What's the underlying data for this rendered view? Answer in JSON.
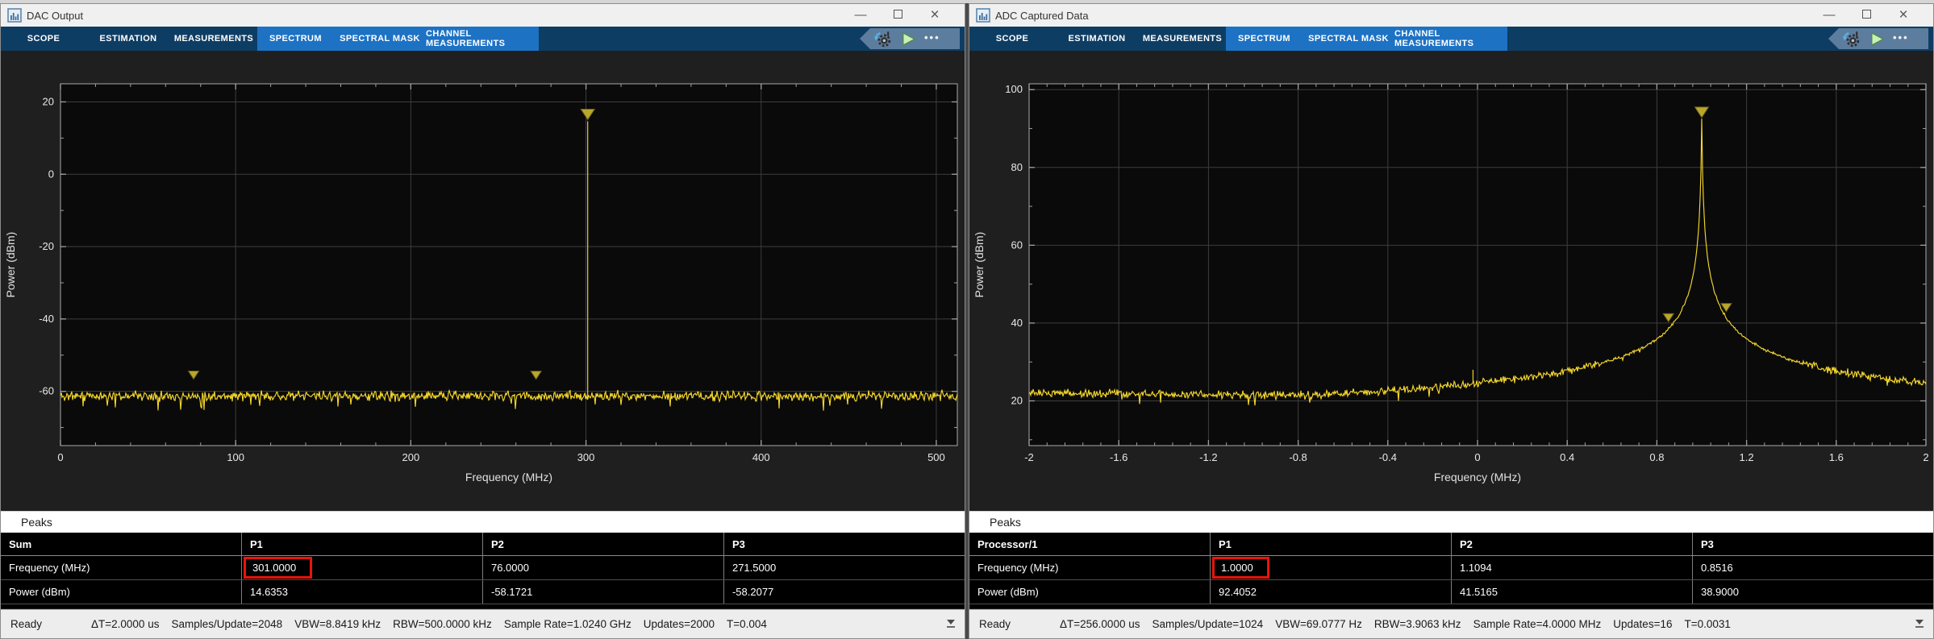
{
  "icons": {
    "minimize": "—",
    "close": "×",
    "more_options": "•••"
  },
  "accent_colors": {
    "toolstrip_dark": "#0e3d64",
    "toolstrip_bright": "#1d72c4",
    "highlight_red": "#e8140c",
    "trace_yellow": "#f4d62c"
  },
  "windows": [
    {
      "title": "DAC Output",
      "tabs": [
        "SCOPE",
        "ESTIMATION",
        "MEASUREMENTS",
        "SPECTRUM",
        "SPECTRAL MASK",
        "CHANNEL MEASUREMENTS"
      ],
      "peaks_panel": {
        "title": "Peaks",
        "columns": [
          "Sum",
          "P1",
          "P2",
          "P3"
        ],
        "rows": [
          {
            "label": "Frequency (MHz)",
            "values": [
              "301.0000",
              "76.0000",
              "271.5000"
            ],
            "highlighted_column": "P1"
          },
          {
            "label": "Power (dBm)",
            "values": [
              "14.6353",
              "-58.1721",
              "-58.2077"
            ]
          }
        ]
      },
      "status": {
        "state": "Ready",
        "metrics": [
          "ΔT=2.0000 us",
          "Samples/Update=2048",
          "VBW=8.8419 kHz",
          "RBW=500.0000 kHz",
          "Sample Rate=1.0240 GHz",
          "Updates=2000",
          "T=0.004"
        ]
      }
    },
    {
      "title": "ADC Captured Data",
      "tabs": [
        "SCOPE",
        "ESTIMATION",
        "MEASUREMENTS",
        "SPECTRUM",
        "SPECTRAL MASK",
        "CHANNEL MEASUREMENTS"
      ],
      "peaks_panel": {
        "title": "Peaks",
        "columns": [
          "Processor/1",
          "P1",
          "P2",
          "P3"
        ],
        "rows": [
          {
            "label": "Frequency (MHz)",
            "values": [
              "1.0000",
              "1.1094",
              "0.8516"
            ],
            "highlighted_column": "P1"
          },
          {
            "label": "Power (dBm)",
            "values": [
              "92.4052",
              "41.5165",
              "38.9000"
            ]
          }
        ]
      },
      "status": {
        "state": "Ready",
        "metrics": [
          "ΔT=256.0000 us",
          "Samples/Update=1024",
          "VBW=69.0777 Hz",
          "RBW=3.9063 kHz",
          "Sample Rate=4.0000 MHz",
          "Updates=16",
          "T=0.0031"
        ]
      }
    }
  ],
  "chart_data": [
    {
      "type": "line",
      "title": "",
      "xlabel": "Frequency (MHz)",
      "ylabel": "Power (dBm)",
      "xlim": [
        0,
        512
      ],
      "ylim": [
        -75,
        25
      ],
      "xticks": [
        0,
        100,
        200,
        300,
        400,
        500
      ],
      "xtick_labels": [
        "0",
        "100",
        "200",
        "300",
        "400",
        "500"
      ],
      "yticks": [
        20,
        0,
        -20,
        -40,
        -60
      ],
      "ytick_labels": [
        "20",
        "0",
        "-20",
        "-40",
        "-60"
      ],
      "x_minor_step": 20,
      "y_minor_step": 10,
      "grid": true,
      "legend": "none",
      "noise_floor_dbm": -61.3,
      "noise_jitter_db": 1.5,
      "spike": {
        "x": 301,
        "y": 14.6353
      },
      "markers": [
        {
          "x": 301,
          "y": 14.6353,
          "size": "large"
        },
        {
          "x": 76,
          "y": -58.1721,
          "size": "small"
        },
        {
          "x": 271.5,
          "y": -58.2077,
          "size": "small"
        }
      ],
      "colors": {
        "trace": "#f4d62c",
        "plot_bg": "#0a0a0a",
        "figure_bg": "#1f1f1f",
        "grid": "#3d3d3d",
        "frame": "#a8a8a8",
        "tick": "#9d9d9d",
        "tick_text": "#e8e8e8",
        "marker_fill": "#b9a82c",
        "marker_edge": "#6f6414"
      }
    },
    {
      "type": "line",
      "title": "",
      "xlabel": "Frequency (MHz)",
      "ylabel": "Power (dBm)",
      "xlim": [
        -2,
        2
      ],
      "ylim": [
        8.5,
        101.5
      ],
      "xticks": [
        -2,
        -1.6,
        -1.2,
        -0.8,
        -0.4,
        0,
        0.4,
        0.8,
        1.2,
        1.6,
        2
      ],
      "xtick_labels": [
        "-2",
        "-1.6",
        "-1.2",
        "-0.8",
        "-0.4",
        "0",
        "0.4",
        "0.8",
        "1.2",
        "1.6",
        "2"
      ],
      "yticks": [
        100,
        80,
        60,
        40,
        20
      ],
      "ytick_labels": [
        "100",
        "80",
        "60",
        "40",
        "20"
      ],
      "x_minor_step": 0.08,
      "y_minor_step": 10,
      "grid": true,
      "legend": "none",
      "noise_floor_dbm": 21.8,
      "noise_jitter_db": 1.2,
      "skirt": {
        "center": 1.0,
        "peak": 92.4052,
        "width": 0.004,
        "exponent": 0.24
      },
      "spur": {
        "x": -0.02,
        "y": 28
      },
      "markers": [
        {
          "x": 1.0,
          "y": 92.4052,
          "size": "large"
        },
        {
          "x": 1.1094,
          "y": 41.5165,
          "size": "small"
        },
        {
          "x": 0.8516,
          "y": 38.9,
          "size": "small"
        }
      ],
      "colors": {
        "trace": "#f4d62c",
        "plot_bg": "#0a0a0a",
        "figure_bg": "#1f1f1f",
        "grid": "#3d3d3d",
        "frame": "#a8a8a8",
        "tick": "#9d9d9d",
        "tick_text": "#e8e8e8",
        "marker_fill": "#b9a82c",
        "marker_edge": "#6f6414"
      }
    }
  ]
}
